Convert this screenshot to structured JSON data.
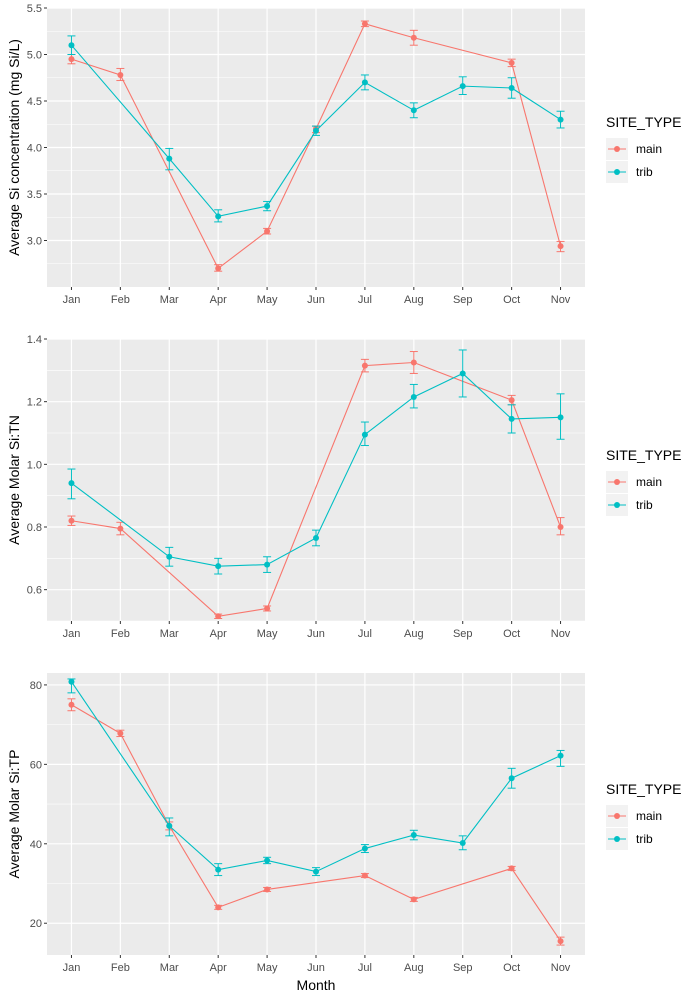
{
  "colors": {
    "main": "#F8766D",
    "trib": "#00BFC4",
    "panel": "#EBEBEB",
    "grid": "#FFFFFF"
  },
  "chart_data": [
    {
      "type": "line",
      "x": [
        "Jan",
        "Feb",
        "Mar",
        "Apr",
        "May",
        "Jun",
        "Jul",
        "Aug",
        "Sep",
        "Oct",
        "Nov"
      ],
      "xlabel": "",
      "ylabel": "Average Si concentration (mg Si/L)",
      "ylim": [
        2.5,
        5.5
      ],
      "yticks": [
        3.0,
        3.5,
        4.0,
        4.5,
        5.0,
        5.5
      ],
      "ytick_labels": [
        "3.0",
        "3.5",
        "4.0",
        "4.5",
        "5.0",
        "5.5"
      ],
      "legend": {
        "title": "SITE_TYPE",
        "position": "right"
      },
      "series": [
        {
          "name": "main",
          "color": "#F8766D",
          "points": [
            {
              "x": "Jan",
              "y": 4.95,
              "lo": 4.9,
              "hi": 5.0
            },
            {
              "x": "Feb",
              "y": 4.78,
              "lo": 4.72,
              "hi": 4.85
            },
            {
              "x": "Apr",
              "y": 2.7,
              "lo": 2.67,
              "hi": 2.74
            },
            {
              "x": "May",
              "y": 3.1,
              "lo": 3.07,
              "hi": 3.13
            },
            {
              "x": "Jun",
              "y": 4.2,
              "lo": 4.16,
              "hi": 4.23
            },
            {
              "x": "Jul",
              "y": 5.33,
              "lo": 5.3,
              "hi": 5.36
            },
            {
              "x": "Aug",
              "y": 5.18,
              "lo": 5.1,
              "hi": 5.26
            },
            {
              "x": "Oct",
              "y": 4.91,
              "lo": 4.87,
              "hi": 4.95
            },
            {
              "x": "Nov",
              "y": 2.94,
              "lo": 2.88,
              "hi": 2.99
            }
          ]
        },
        {
          "name": "trib",
          "color": "#00BFC4",
          "points": [
            {
              "x": "Jan",
              "y": 5.1,
              "lo": 5.0,
              "hi": 5.2
            },
            {
              "x": "Mar",
              "y": 3.88,
              "lo": 3.76,
              "hi": 3.99
            },
            {
              "x": "Apr",
              "y": 3.26,
              "lo": 3.2,
              "hi": 3.33
            },
            {
              "x": "May",
              "y": 3.37,
              "lo": 3.32,
              "hi": 3.42
            },
            {
              "x": "Jun",
              "y": 4.18,
              "lo": 4.13,
              "hi": 4.23
            },
            {
              "x": "Jul",
              "y": 4.7,
              "lo": 4.62,
              "hi": 4.78
            },
            {
              "x": "Aug",
              "y": 4.4,
              "lo": 4.32,
              "hi": 4.48
            },
            {
              "x": "Sep",
              "y": 4.66,
              "lo": 4.57,
              "hi": 4.76
            },
            {
              "x": "Oct",
              "y": 4.64,
              "lo": 4.53,
              "hi": 4.75
            },
            {
              "x": "Nov",
              "y": 4.3,
              "lo": 4.21,
              "hi": 4.39
            }
          ]
        }
      ]
    },
    {
      "type": "line",
      "x": [
        "Jan",
        "Feb",
        "Mar",
        "Apr",
        "May",
        "Jun",
        "Jul",
        "Aug",
        "Sep",
        "Oct",
        "Nov"
      ],
      "xlabel": "",
      "ylabel": "Average Molar Si:TN",
      "ylim": [
        0.5,
        1.4
      ],
      "yticks": [
        0.6,
        0.8,
        1.0,
        1.2,
        1.4
      ],
      "ytick_labels": [
        "0.6",
        "0.8",
        "1.0",
        "1.2",
        "1.4"
      ],
      "legend": {
        "title": "SITE_TYPE",
        "position": "right"
      },
      "series": [
        {
          "name": "main",
          "color": "#F8766D",
          "points": [
            {
              "x": "Jan",
              "y": 0.82,
              "lo": 0.805,
              "hi": 0.835
            },
            {
              "x": "Feb",
              "y": 0.795,
              "lo": 0.775,
              "hi": 0.815
            },
            {
              "x": "Apr",
              "y": 0.515,
              "lo": 0.508,
              "hi": 0.522
            },
            {
              "x": "May",
              "y": 0.54,
              "lo": 0.532,
              "hi": 0.548
            },
            {
              "x": "Jul",
              "y": 1.315,
              "lo": 1.295,
              "hi": 1.335
            },
            {
              "x": "Aug",
              "y": 1.325,
              "lo": 1.29,
              "hi": 1.36
            },
            {
              "x": "Oct",
              "y": 1.205,
              "lo": 1.19,
              "hi": 1.22
            },
            {
              "x": "Nov",
              "y": 0.8,
              "lo": 0.775,
              "hi": 0.83
            }
          ]
        },
        {
          "name": "trib",
          "color": "#00BFC4",
          "points": [
            {
              "x": "Jan",
              "y": 0.94,
              "lo": 0.89,
              "hi": 0.985
            },
            {
              "x": "Mar",
              "y": 0.705,
              "lo": 0.675,
              "hi": 0.735
            },
            {
              "x": "Apr",
              "y": 0.675,
              "lo": 0.65,
              "hi": 0.7
            },
            {
              "x": "May",
              "y": 0.68,
              "lo": 0.655,
              "hi": 0.705
            },
            {
              "x": "Jun",
              "y": 0.765,
              "lo": 0.74,
              "hi": 0.79
            },
            {
              "x": "Jul",
              "y": 1.095,
              "lo": 1.06,
              "hi": 1.135
            },
            {
              "x": "Aug",
              "y": 1.215,
              "lo": 1.18,
              "hi": 1.255
            },
            {
              "x": "Sep",
              "y": 1.29,
              "lo": 1.215,
              "hi": 1.365
            },
            {
              "x": "Oct",
              "y": 1.145,
              "lo": 1.1,
              "hi": 1.19
            },
            {
              "x": "Nov",
              "y": 1.15,
              "lo": 1.08,
              "hi": 1.225
            }
          ]
        }
      ]
    },
    {
      "type": "line",
      "x": [
        "Jan",
        "Feb",
        "Mar",
        "Apr",
        "May",
        "Jun",
        "Jul",
        "Aug",
        "Sep",
        "Oct",
        "Nov"
      ],
      "xlabel": "Month",
      "ylabel": "Average Molar Si:TP",
      "ylim": [
        12,
        83
      ],
      "yticks": [
        20,
        40,
        60,
        80
      ],
      "ytick_labels": [
        "20",
        "40",
        "60",
        "80"
      ],
      "legend": {
        "title": "SITE_TYPE",
        "position": "right"
      },
      "series": [
        {
          "name": "main",
          "color": "#F8766D",
          "points": [
            {
              "x": "Jan",
              "y": 75.0,
              "lo": 73.5,
              "hi": 76.5
            },
            {
              "x": "Feb",
              "y": 67.8,
              "lo": 67.0,
              "hi": 68.6
            },
            {
              "x": "Mar",
              "y": 44.5,
              "lo": 43.5,
              "hi": 45.5
            },
            {
              "x": "Apr",
              "y": 24.0,
              "lo": 23.5,
              "hi": 24.5
            },
            {
              "x": "May",
              "y": 28.5,
              "lo": 28.0,
              "hi": 29.0
            },
            {
              "x": "Jul",
              "y": 32.0,
              "lo": 31.5,
              "hi": 32.5
            },
            {
              "x": "Aug",
              "y": 26.0,
              "lo": 25.5,
              "hi": 26.5
            },
            {
              "x": "Oct",
              "y": 33.8,
              "lo": 33.3,
              "hi": 34.3
            },
            {
              "x": "Nov",
              "y": 15.5,
              "lo": 14.5,
              "hi": 16.5
            }
          ]
        },
        {
          "name": "trib",
          "color": "#00BFC4",
          "points": [
            {
              "x": "Jan",
              "y": 80.8,
              "lo": 78.0,
              "hi": 81.5
            },
            {
              "x": "Mar",
              "y": 44.5,
              "lo": 42.0,
              "hi": 46.5
            },
            {
              "x": "Apr",
              "y": 33.5,
              "lo": 32.0,
              "hi": 35.0
            },
            {
              "x": "May",
              "y": 35.8,
              "lo": 35.0,
              "hi": 36.6
            },
            {
              "x": "Jun",
              "y": 33.0,
              "lo": 32.0,
              "hi": 34.0
            },
            {
              "x": "Jul",
              "y": 38.8,
              "lo": 37.8,
              "hi": 39.8
            },
            {
              "x": "Aug",
              "y": 42.2,
              "lo": 41.0,
              "hi": 43.4
            },
            {
              "x": "Sep",
              "y": 40.2,
              "lo": 38.5,
              "hi": 42.0
            },
            {
              "x": "Oct",
              "y": 56.5,
              "lo": 54.0,
              "hi": 59.0
            },
            {
              "x": "Nov",
              "y": 62.2,
              "lo": 59.5,
              "hi": 63.5
            }
          ]
        }
      ]
    }
  ]
}
